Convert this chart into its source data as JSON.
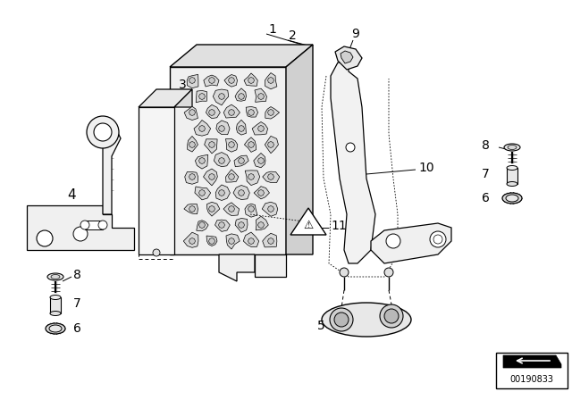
{
  "bg_color": "#ffffff",
  "line_color": "#000000",
  "part_number": "00190833",
  "figsize": [
    6.4,
    4.48
  ],
  "dpi": 100
}
